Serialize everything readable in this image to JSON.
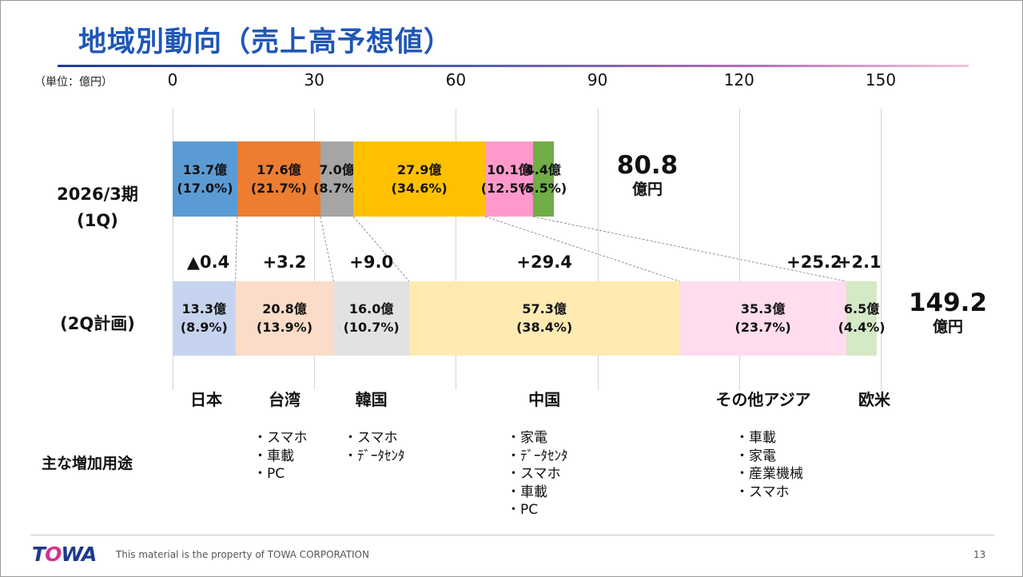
{
  "title": "地域別動向（売上高予想値）",
  "unit_label": "（単位：億円）",
  "chart_data": {
    "type": "bar",
    "orientation": "horizontal-stacked",
    "xlim": [
      0,
      150
    ],
    "x_ticks": [
      "0",
      "30",
      "60",
      "90",
      "120",
      "150"
    ],
    "categories": [
      "日本",
      "台湾",
      "韓国",
      "中国",
      "その他アジア",
      "欧米"
    ],
    "series": [
      {
        "name_lines": [
          "2026/3期",
          "(1Q)"
        ],
        "values": [
          13.7,
          17.6,
          7.0,
          27.9,
          10.1,
          4.4
        ],
        "value_labels": [
          "13.7億",
          "17.6億",
          "7.0億",
          "27.9億",
          "10.1億",
          "4.4億"
        ],
        "pct_labels": [
          "(17.0%)",
          "(21.7%)",
          "(8.7%)",
          "(34.6%)",
          "(12.5%)",
          "(5.5%)"
        ],
        "colors": [
          "#5b9bd5",
          "#ed7d31",
          "#a5a5a5",
          "#ffc000",
          "#ff99cc",
          "#70ad47"
        ],
        "total": "80.8",
        "total_unit": "億円"
      },
      {
        "name_lines": [
          "(2Q計画)"
        ],
        "values": [
          13.3,
          20.8,
          16.0,
          57.3,
          35.3,
          6.5
        ],
        "value_labels": [
          "13.3億",
          "20.8億",
          "16.0億",
          "57.3億",
          "35.3億",
          "6.5億"
        ],
        "pct_labels": [
          "(8.9%)",
          "(13.9%)",
          "(10.7%)",
          "(38.4%)",
          "(23.7%)",
          "(4.4%)"
        ],
        "colors": [
          "#c6d3ef",
          "#fadcc8",
          "#e2e2e2",
          "#ffeab2",
          "#ffdcee",
          "#d4e9c6"
        ],
        "total": "149.2",
        "total_unit": "億円"
      }
    ],
    "deltas": [
      "▲0.4",
      "+3.2",
      "+9.0",
      "+29.4",
      "+25.2",
      "+2.1"
    ]
  },
  "uses": {
    "title": "主な増加用途",
    "columns": [
      [
        "スマホ",
        "車載",
        "PC"
      ],
      [
        "スマホ",
        "ﾃﾞｰﾀｾﾝﾀ"
      ],
      [
        "家電",
        "ﾃﾞｰﾀｾﾝﾀ",
        "スマホ",
        "車載",
        "PC"
      ],
      [
        "車載",
        "家電",
        "産業機械",
        "スマホ"
      ]
    ]
  },
  "footer": {
    "logo_text": "TOWA",
    "copyright": "This material is the property of TOWA CORPORATION",
    "page_number": "13"
  }
}
